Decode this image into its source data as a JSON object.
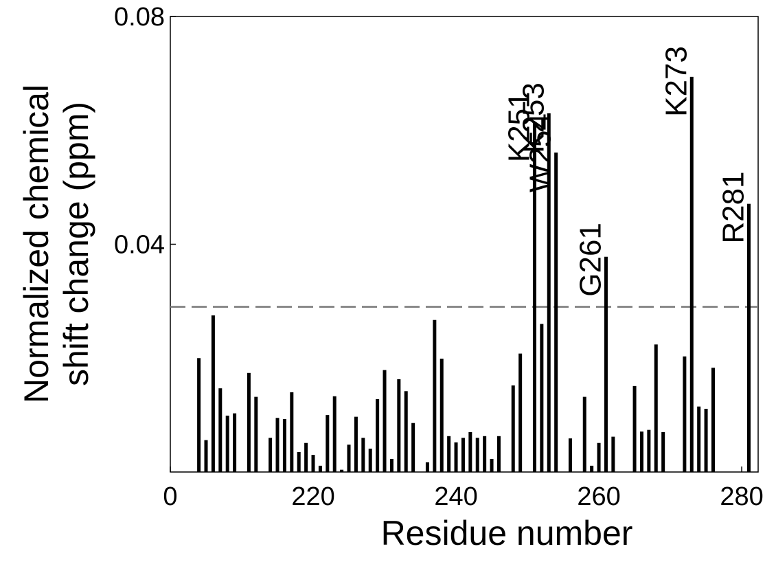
{
  "chart_data": {
    "type": "bar",
    "xlabel": "Residue number",
    "ylabel": [
      "Normalized chemical",
      "shift change (ppm)"
    ],
    "color": "#000000",
    "x": [
      204,
      205,
      206,
      207,
      208,
      209,
      211,
      212,
      214,
      215,
      216,
      217,
      218,
      219,
      220,
      221,
      222,
      223,
      224,
      225,
      226,
      227,
      228,
      229,
      230,
      231,
      232,
      233,
      234,
      236,
      237,
      238,
      239,
      240,
      241,
      242,
      243,
      244,
      245,
      246,
      248,
      249,
      251,
      252,
      253,
      254,
      256,
      258,
      259,
      260,
      261,
      262,
      265,
      266,
      267,
      268,
      269,
      272,
      273,
      274,
      275,
      276,
      281
    ],
    "values": [
      0.02,
      0.0056,
      0.0275,
      0.0147,
      0.0099,
      0.0103,
      0.0174,
      0.0132,
      0.006,
      0.0095,
      0.0093,
      0.014,
      0.0035,
      0.0051,
      0.003,
      0.0011,
      0.01,
      0.0133,
      0.0004,
      0.0048,
      0.0097,
      0.006,
      0.0041,
      0.0128,
      0.0179,
      0.0023,
      0.0163,
      0.0142,
      0.0086,
      0.0017,
      0.0267,
      0.0199,
      0.0063,
      0.0052,
      0.006,
      0.007,
      0.006,
      0.0063,
      0.0023,
      0.0063,
      0.0152,
      0.0208,
      0.0614,
      0.026,
      0.063,
      0.0561,
      0.0059,
      0.0132,
      0.0011,
      0.0051,
      0.0378,
      0.0062,
      0.0151,
      0.0071,
      0.0074,
      0.0224,
      0.007,
      0.0203,
      0.0694,
      0.0115,
      0.0111,
      0.0183,
      0.0471
    ],
    "threshold": 0.029,
    "annotations": [
      {
        "text": "K251",
        "x": 251
      },
      {
        "text": "K253",
        "x": 253
      },
      {
        "text": "W254",
        "x": 254
      },
      {
        "text": "G261",
        "x": 261
      },
      {
        "text": "K273",
        "x": 273
      },
      {
        "text": "R281",
        "x": 281
      }
    ],
    "xlim": [
      200,
      282.3
    ],
    "xticks": [
      {
        "value": 200,
        "label": "0"
      },
      220,
      240,
      260,
      280
    ],
    "ylim": [
      0,
      0.08
    ],
    "yticks": [
      0.04,
      0.08
    ]
  }
}
